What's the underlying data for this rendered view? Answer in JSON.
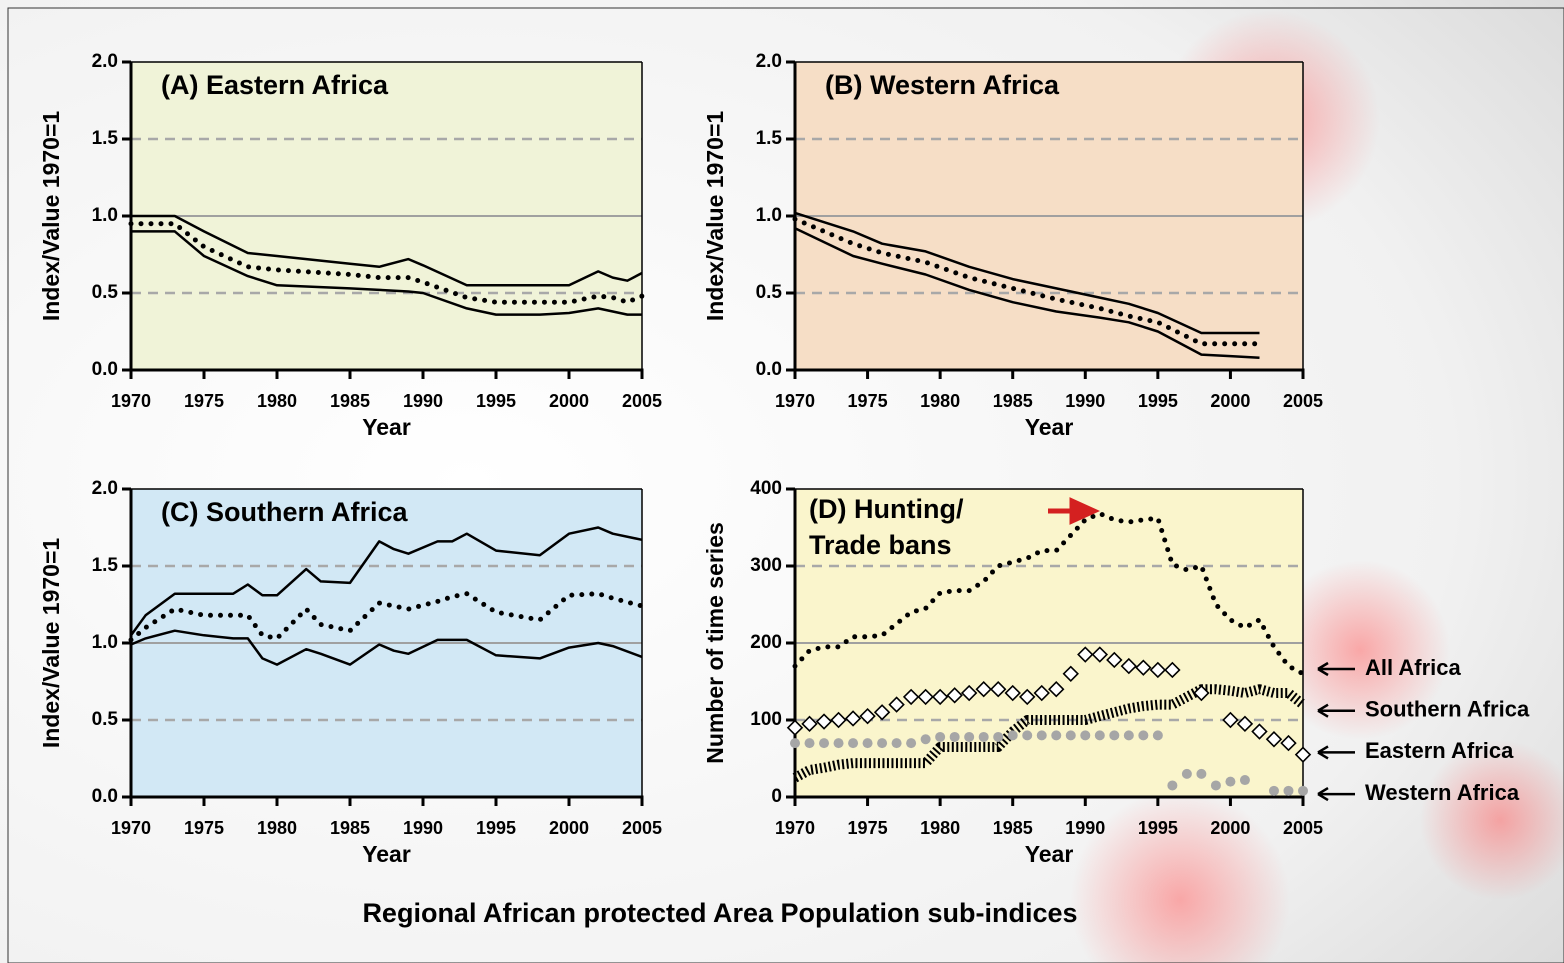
{
  "title": "Regional African protected Area Population sub-indices",
  "chart_data": [
    {
      "type": "line",
      "title": "(A) Eastern Africa",
      "x_label": "Year",
      "y_label": "Index/Value 1970=1",
      "background": "#f0f3d8",
      "x": [
        1970,
        1973,
        1975,
        1978,
        1980,
        1985,
        1987,
        1989,
        1990,
        1993,
        1995,
        1998,
        2000,
        2002,
        2003,
        2004,
        2005
      ],
      "series": [
        {
          "style": "solid",
          "color": "#000000",
          "values": [
            1.0,
            1.0,
            0.9,
            0.76,
            0.74,
            0.69,
            0.67,
            0.72,
            0.68,
            0.55,
            0.55,
            0.55,
            0.55,
            0.64,
            0.6,
            0.58,
            0.63
          ]
        },
        {
          "style": "dotted",
          "color": "#000000",
          "values": [
            0.95,
            0.95,
            0.8,
            0.67,
            0.65,
            0.62,
            0.6,
            0.6,
            0.57,
            0.47,
            0.44,
            0.44,
            0.44,
            0.48,
            0.47,
            0.44,
            0.48
          ]
        },
        {
          "style": "solid",
          "color": "#000000",
          "values": [
            0.9,
            0.9,
            0.74,
            0.61,
            0.55,
            0.53,
            0.52,
            0.51,
            0.5,
            0.4,
            0.36,
            0.36,
            0.37,
            0.4,
            0.38,
            0.36,
            0.36
          ]
        }
      ],
      "xlim": [
        1970,
        2005
      ],
      "xticks": [
        1970,
        1975,
        1980,
        1985,
        1990,
        1995,
        2000,
        2005
      ],
      "ylim": [
        0,
        2
      ],
      "yticks": [
        {
          "value": 0,
          "label": "0.0"
        },
        {
          "value": 0.5,
          "label": "0.5"
        },
        {
          "value": 1,
          "label": "1.0"
        },
        {
          "value": 1.5,
          "label": "1.5"
        },
        {
          "value": 2,
          "label": "2.0"
        }
      ]
    },
    {
      "type": "line",
      "title": "(B) Western Africa",
      "x_label": "Year",
      "y_label": "Index/Value 1970=1",
      "background": "#f6dec6",
      "x": [
        1970,
        1974,
        1976,
        1979,
        1982,
        1985,
        1988,
        1991,
        1993,
        1995,
        1998,
        2000,
        2002
      ],
      "series": [
        {
          "style": "solid",
          "color": "#000000",
          "values": [
            1.02,
            0.9,
            0.82,
            0.77,
            0.67,
            0.59,
            0.53,
            0.47,
            0.43,
            0.37,
            0.24,
            0.24,
            0.24
          ]
        },
        {
          "style": "dotted",
          "color": "#000000",
          "values": [
            0.98,
            0.82,
            0.76,
            0.7,
            0.6,
            0.53,
            0.46,
            0.4,
            0.35,
            0.31,
            0.17,
            0.17,
            0.17
          ]
        },
        {
          "style": "solid",
          "color": "#000000",
          "values": [
            0.92,
            0.74,
            0.69,
            0.62,
            0.52,
            0.44,
            0.38,
            0.34,
            0.31,
            0.25,
            0.1,
            0.09,
            0.08
          ]
        }
      ],
      "xlim": [
        1970,
        2005
      ],
      "xticks": [
        1970,
        1975,
        1980,
        1985,
        1990,
        1995,
        2000,
        2005
      ],
      "ylim": [
        0,
        2
      ],
      "yticks": [
        {
          "value": 0,
          "label": "0.0"
        },
        {
          "value": 0.5,
          "label": "0.5"
        },
        {
          "value": 1,
          "label": "1.0"
        },
        {
          "value": 1.5,
          "label": "1.5"
        },
        {
          "value": 2,
          "label": "2.0"
        }
      ]
    },
    {
      "type": "line",
      "title": "(C) Southern Africa",
      "x_label": "Year",
      "y_label": "Index/Value 1970=1",
      "background": "#d2e8f5",
      "x": [
        1970,
        1971,
        1973,
        1975,
        1977,
        1978,
        1979,
        1980,
        1982,
        1983,
        1985,
        1987,
        1988,
        1989,
        1991,
        1992,
        1993,
        1995,
        1998,
        2000,
        2002,
        2003,
        2005
      ],
      "series": [
        {
          "style": "solid",
          "color": "#000000",
          "values": [
            1.05,
            1.18,
            1.32,
            1.32,
            1.32,
            1.38,
            1.31,
            1.31,
            1.48,
            1.4,
            1.39,
            1.66,
            1.61,
            1.58,
            1.66,
            1.66,
            1.71,
            1.6,
            1.57,
            1.71,
            1.75,
            1.71,
            1.67
          ]
        },
        {
          "style": "dotted",
          "color": "#000000",
          "values": [
            1.02,
            1.1,
            1.22,
            1.18,
            1.18,
            1.18,
            1.05,
            1.03,
            1.22,
            1.12,
            1.08,
            1.26,
            1.24,
            1.22,
            1.27,
            1.3,
            1.32,
            1.2,
            1.15,
            1.31,
            1.32,
            1.29,
            1.24
          ]
        },
        {
          "style": "solid",
          "color": "#000000",
          "values": [
            0.99,
            1.03,
            1.08,
            1.05,
            1.03,
            1.03,
            0.9,
            0.86,
            0.96,
            0.93,
            0.86,
            0.99,
            0.95,
            0.93,
            1.02,
            1.02,
            1.02,
            0.92,
            0.9,
            0.97,
            1.0,
            0.98,
            0.91
          ]
        }
      ],
      "xlim": [
        1970,
        2005
      ],
      "xticks": [
        1970,
        1975,
        1980,
        1985,
        1990,
        1995,
        2000,
        2005
      ],
      "ylim": [
        0,
        2
      ],
      "yticks": [
        {
          "value": 0,
          "label": "0.0"
        },
        {
          "value": 0.5,
          "label": "0.5"
        },
        {
          "value": 1,
          "label": "1.0"
        },
        {
          "value": 1.5,
          "label": "1.5"
        },
        {
          "value": 2,
          "label": "2.0"
        }
      ]
    },
    {
      "type": "line",
      "title": [
        "(D) Hunting/",
        "Trade bans"
      ],
      "x_label": "Year",
      "y_label": "Number of time series",
      "background": "#faf5cc",
      "x": [
        1970,
        1971,
        1972,
        1973,
        1974,
        1975,
        1976,
        1977,
        1978,
        1979,
        1980,
        1981,
        1982,
        1983,
        1984,
        1985,
        1986,
        1987,
        1988,
        1989,
        1990,
        1991,
        1992,
        1993,
        1994,
        1995,
        1996,
        1997,
        1998,
        1999,
        2000,
        2001,
        2002,
        2003,
        2004,
        2005
      ],
      "series": [
        {
          "name": "All Africa",
          "style": "dotted",
          "color": "#000000",
          "values": [
            170,
            190,
            195,
            195,
            208,
            208,
            210,
            225,
            240,
            245,
            265,
            268,
            268,
            280,
            300,
            305,
            310,
            320,
            320,
            340,
            360,
            368,
            360,
            357,
            360,
            362,
            302,
            295,
            300,
            250,
            230,
            220,
            230,
            195,
            170,
            160
          ]
        },
        {
          "name": "Southern Africa",
          "style": "hatched",
          "color": "#000000",
          "values": [
            25,
            35,
            38,
            42,
            44,
            44,
            44,
            44,
            44,
            44,
            65,
            65,
            65,
            65,
            65,
            85,
            100,
            100,
            100,
            100,
            100,
            105,
            110,
            115,
            118,
            120,
            120,
            130,
            140,
            140,
            138,
            135,
            140,
            135,
            135,
            120
          ]
        },
        {
          "name": "Eastern Africa",
          "style": "diamond",
          "color": "#000000",
          "values": [
            90,
            95,
            98,
            100,
            102,
            105,
            110,
            120,
            130,
            130,
            130,
            132,
            135,
            140,
            140,
            135,
            130,
            135,
            140,
            160,
            185,
            185,
            178,
            170,
            168,
            165,
            165,
            null,
            135,
            null,
            100,
            95,
            85,
            75,
            70,
            55
          ]
        },
        {
          "name": "Western Africa",
          "style": "circle",
          "color": "#a6a6a6",
          "values": [
            70,
            70,
            70,
            70,
            70,
            70,
            70,
            70,
            70,
            75,
            78,
            78,
            78,
            78,
            78,
            80,
            80,
            80,
            80,
            80,
            80,
            80,
            80,
            80,
            80,
            80,
            15,
            30,
            30,
            15,
            20,
            22,
            null,
            8,
            8,
            8
          ]
        }
      ],
      "xlim": [
        1970,
        2005
      ],
      "xticks": [
        1970,
        1975,
        1980,
        1985,
        1990,
        1995,
        2000,
        2005
      ],
      "ylim": [
        0,
        400
      ],
      "yticks": [
        0,
        100,
        200,
        300,
        400
      ]
    }
  ]
}
